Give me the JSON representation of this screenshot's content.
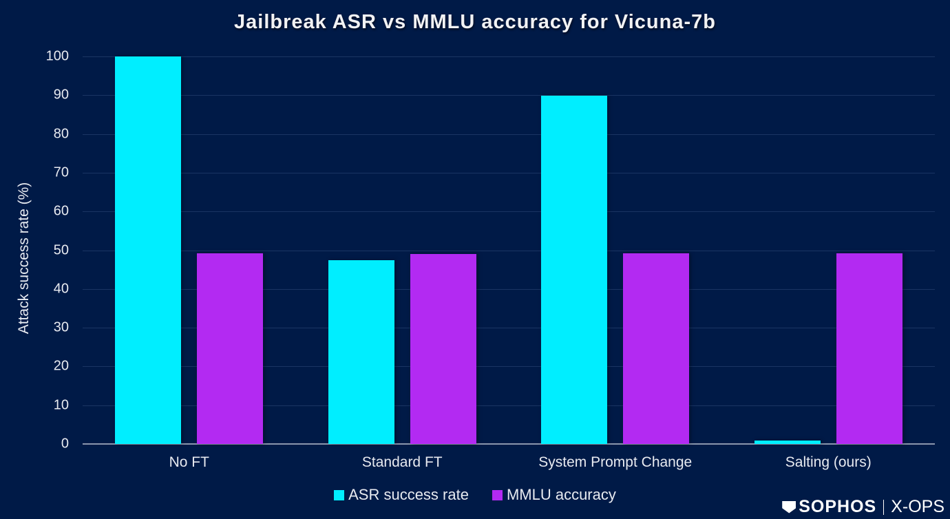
{
  "chart_data": {
    "type": "bar",
    "title": "Jailbreak ASR vs MMLU accuracy for Vicuna-7b",
    "xlabel": "",
    "ylabel": "Attack success rate (%)",
    "ylim": [
      0,
      100
    ],
    "yticks": [
      0,
      10,
      20,
      30,
      40,
      50,
      60,
      70,
      80,
      90,
      100
    ],
    "grid": true,
    "legend_position": "bottom",
    "categories": [
      "No FT",
      "Standard FT",
      "System Prompt Change",
      "Salting (ours)"
    ],
    "series": [
      {
        "name": "ASR success rate",
        "color": "#00EEFF",
        "values": [
          100,
          47.4,
          89.9,
          0.9
        ]
      },
      {
        "name": "MMLU accuracy",
        "color": "#B32AF2",
        "values": [
          49.2,
          49.0,
          49.2,
          49.2
        ]
      }
    ]
  },
  "logo": {
    "brand": "SOPHOS",
    "product": "X-OPS"
  }
}
